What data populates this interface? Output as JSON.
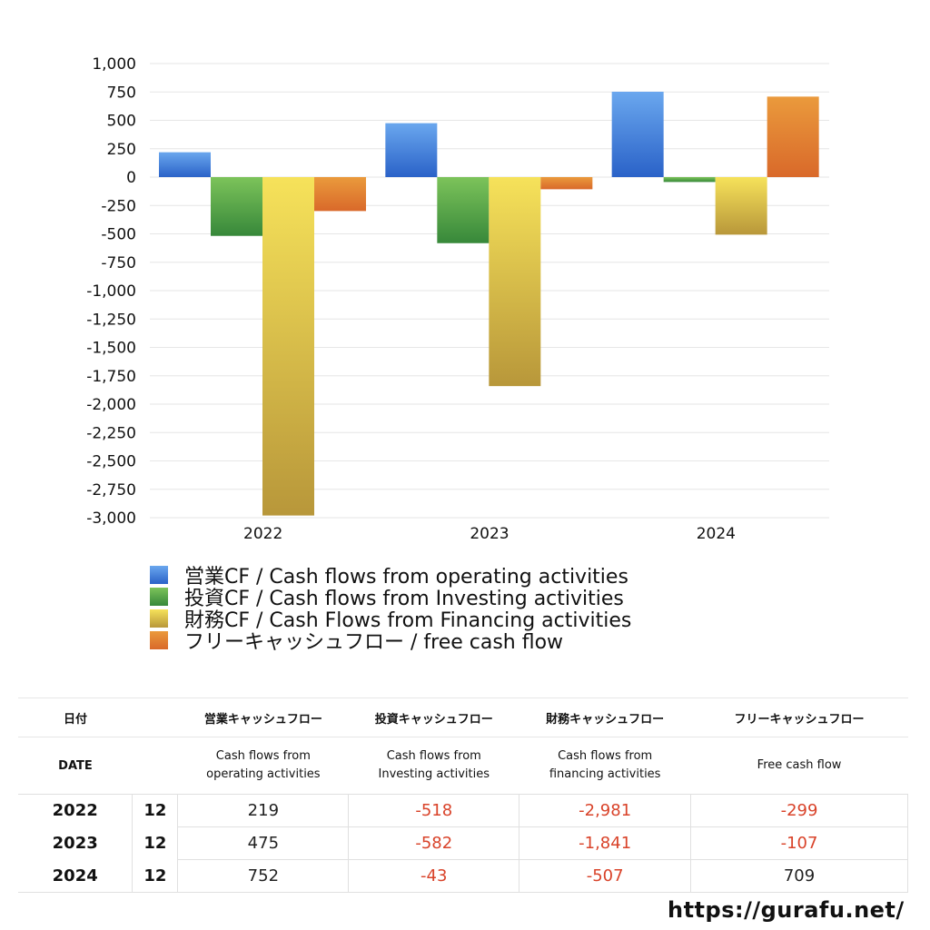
{
  "chart_data": {
    "type": "bar",
    "categories": [
      "2022",
      "2023",
      "2024"
    ],
    "ylim": [
      -3000,
      1000
    ],
    "yticks": [
      "1,000",
      "750",
      "500",
      "250",
      "0",
      "-250",
      "-500",
      "-750",
      "-1,000",
      "-1,250",
      "-1,500",
      "-1,750",
      "-2,000",
      "-2,250",
      "-2,500",
      "-2,750",
      "-3,000"
    ],
    "series": [
      {
        "name": "営業CF / Cash flows from operating activities",
        "values": [
          219,
          475,
          752
        ],
        "color_top": "#6aa7ee",
        "color_bottom": "#2a62c8"
      },
      {
        "name": "投資CF / Cash flows from Investing activities",
        "values": [
          -518,
          -582,
          -43
        ],
        "color_top": "#7cc35a",
        "color_bottom": "#37883a"
      },
      {
        "name": "財務CF / Cash Flows from Financing activities",
        "values": [
          -2981,
          -1841,
          -507
        ],
        "color_top": "#f6e25a",
        "color_bottom": "#b8973a"
      },
      {
        "name": "フリーキャッシュフロー / free cash flow",
        "values": [
          -299,
          -107,
          709
        ],
        "color_top": "#ea9a3c",
        "color_bottom": "#d9692a"
      }
    ],
    "grid": true,
    "legend": "bottom"
  },
  "table": {
    "headers_jp": [
      "日付",
      "営業キャッシュフロー",
      "投資キャッシュフロー",
      "財務キャッシュフロー",
      "フリーキャッシュフロー"
    ],
    "date_label": "DATE",
    "headers_en": [
      [
        "Cash flows from",
        "operating activities"
      ],
      [
        "Cash flows from",
        "Investing activities"
      ],
      [
        "Cash flows from",
        "financing activities"
      ],
      [
        "Free cash flow",
        ""
      ]
    ],
    "rows": [
      {
        "year": "2022",
        "month": "12",
        "values": [
          "219",
          "-518",
          "-2,981",
          "-299"
        ]
      },
      {
        "year": "2023",
        "month": "12",
        "values": [
          "475",
          "-582",
          "-1,841",
          "-107"
        ]
      },
      {
        "year": "2024",
        "month": "12",
        "values": [
          "752",
          "-43",
          "-507",
          "709"
        ]
      }
    ]
  },
  "site_url": "https://gurafu.net/"
}
